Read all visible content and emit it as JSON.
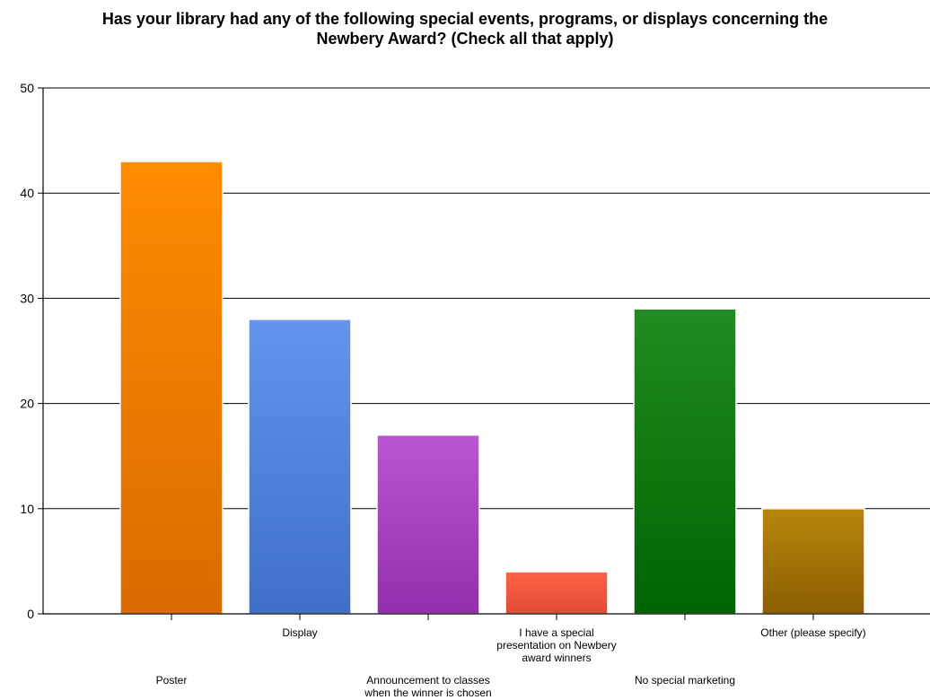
{
  "chart_data": {
    "type": "bar",
    "title_lines": [
      "Has your library had any of the following special events, programs, or displays concerning the",
      "Newbery Award? (Check all that apply)"
    ],
    "categories": [
      "Poster",
      "Display",
      "Announcement to classes when the winner is chosen",
      "I have a special presentation on Newbery award winners",
      "No special marketing",
      "Other (please specify)"
    ],
    "category_label_lines": [
      [
        "Poster"
      ],
      [
        "Display"
      ],
      [
        "Announcement to classes",
        "when the winner is chosen"
      ],
      [
        "I have a special",
        "presentation on Newbery",
        "award winners"
      ],
      [
        "No special marketing"
      ],
      [
        "Other (please specify)"
      ]
    ],
    "values": [
      43,
      28,
      17,
      4,
      29,
      10
    ],
    "ylim": [
      0,
      50
    ],
    "yticks": [
      0,
      10,
      20,
      30,
      40,
      50
    ],
    "grid": true,
    "legend": "none",
    "bar_colors": [
      {
        "top": "#FF8C00",
        "bottom": "#DB6A00"
      },
      {
        "top": "#6495ED",
        "bottom": "#3F6FC6"
      },
      {
        "top": "#BA55D3",
        "bottom": "#932EAD"
      },
      {
        "top": "#FF6347",
        "bottom": "#E04A35"
      },
      {
        "top": "#228B22",
        "bottom": "#006400"
      },
      {
        "top": "#B8860B",
        "bottom": "#8B5E00"
      }
    ]
  }
}
